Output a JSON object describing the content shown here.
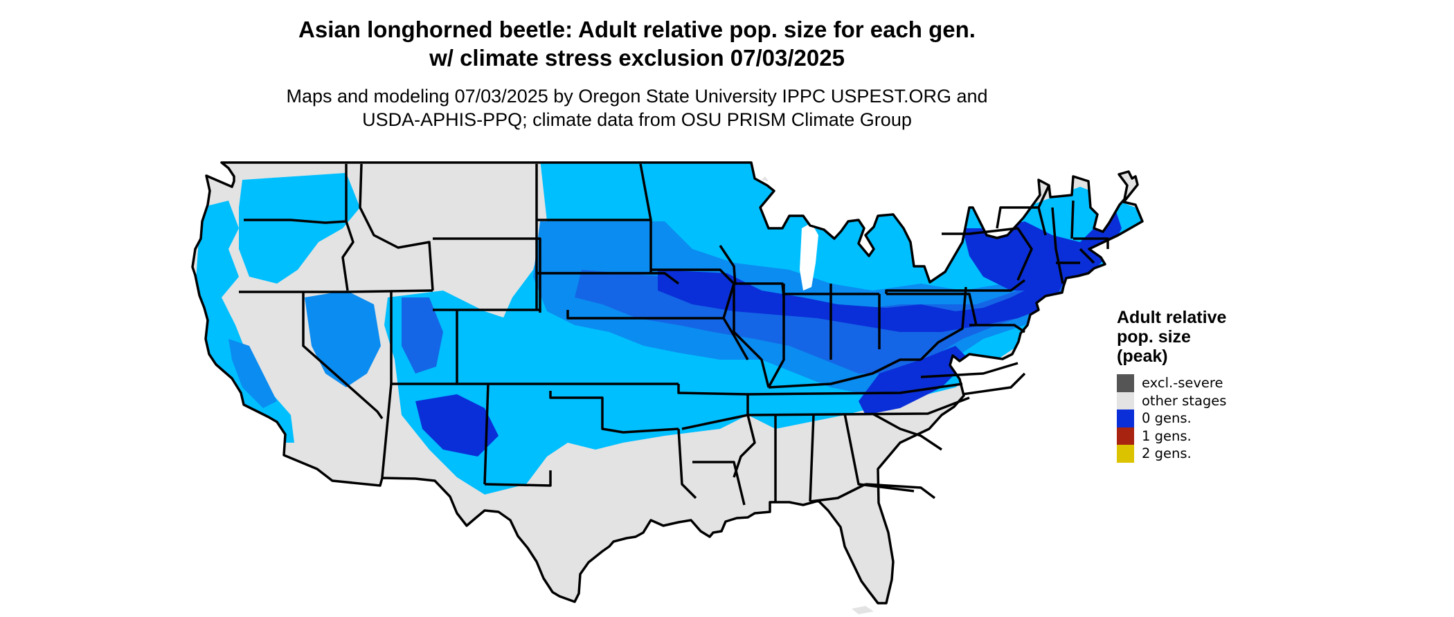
{
  "title_line1": "Asian longhorned beetle: Adult relative pop. size for each gen.",
  "title_line2": "w/ climate stress exclusion 07/03/2025",
  "subtitle_line1": "Maps and modeling 07/03/2025 by Oregon State University IPPC USPEST.ORG and",
  "subtitle_line2": "USDA-APHIS-PPQ; climate data from OSU PRISM Climate Group",
  "legend": {
    "title_line1": "Adult relative",
    "title_line2": "pop. size",
    "title_line3": "(peak)",
    "items": [
      {
        "label": "excl.-severe",
        "color": "#555555"
      },
      {
        "label": "other stages",
        "color": "#e3e3e3"
      },
      {
        "label": "0 gens.",
        "color": "#0a2fd8"
      },
      {
        "label": "1 gens.",
        "color": "#a82411"
      },
      {
        "label": "2 gens.",
        "color": "#dcc300"
      }
    ]
  },
  "map_colors": {
    "other_stages": "#e3e3e3",
    "light_blue": "#00bfff",
    "mid_blue": "#0b8cf0",
    "royal_blue": "#1466e6",
    "deep_blue": "#0a2fd8",
    "borders": "#000000"
  }
}
